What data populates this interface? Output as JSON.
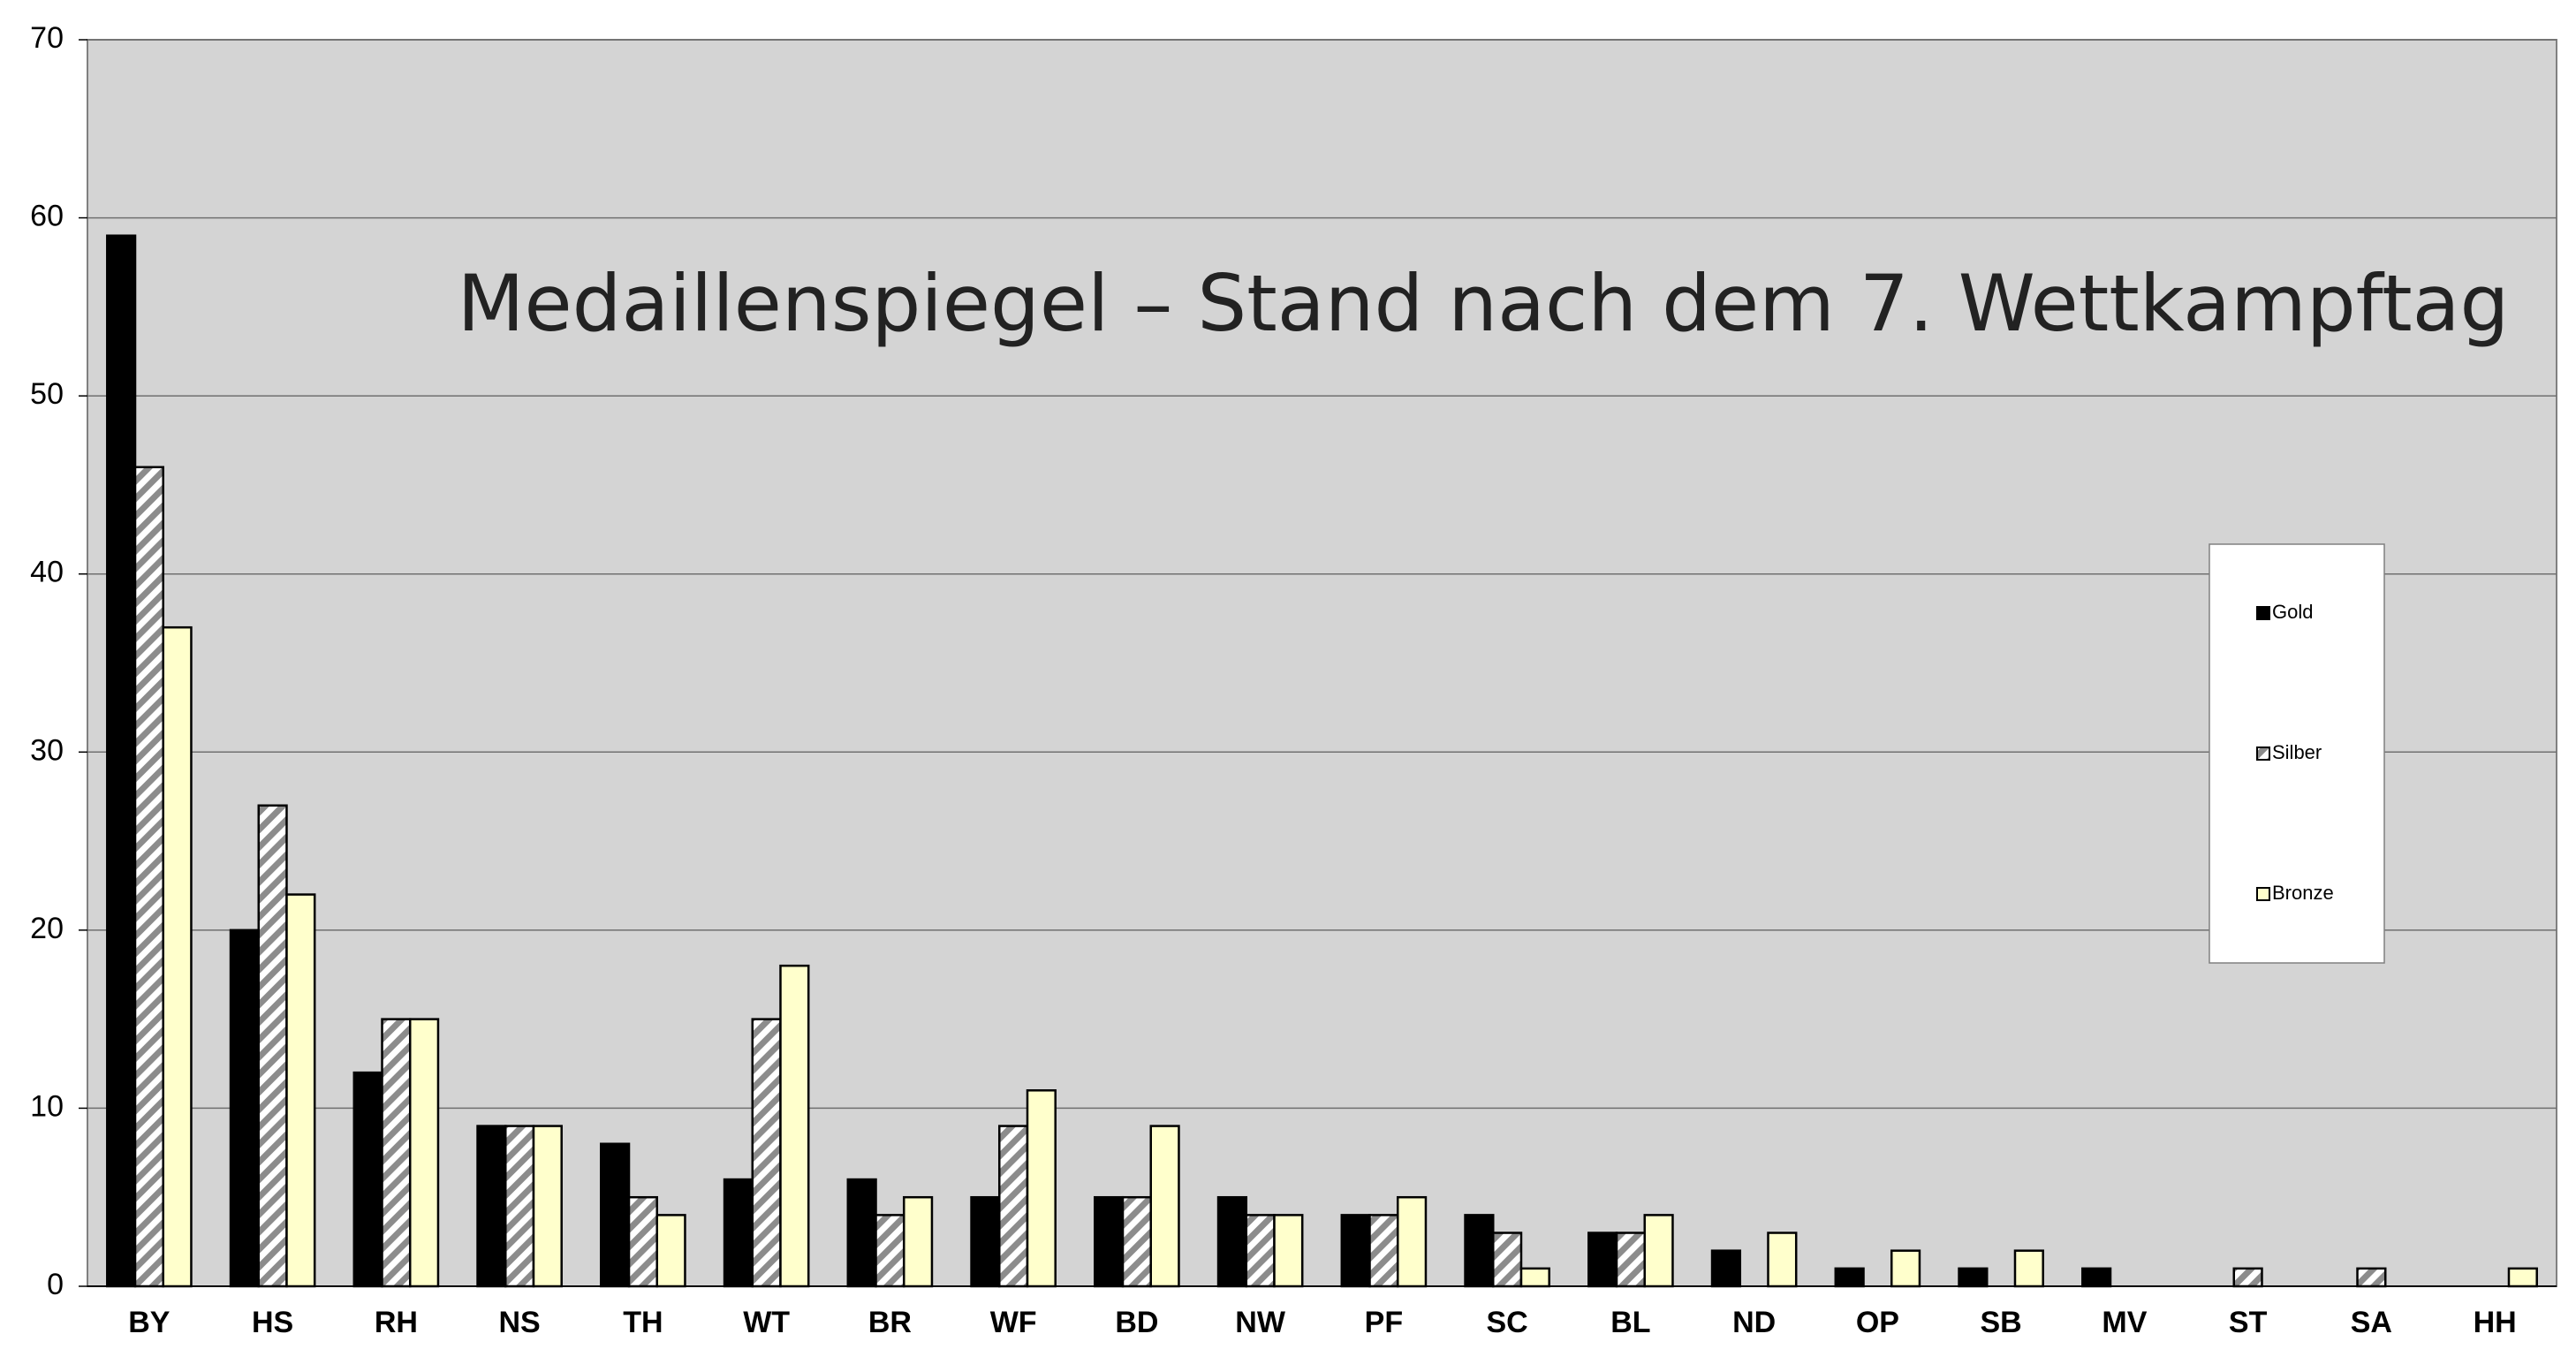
{
  "chart_data": {
    "type": "bar",
    "title": "Medaillenspiegel – Stand nach dem 7. Wettkampftag",
    "categories": [
      "BY",
      "HS",
      "RH",
      "NS",
      "TH",
      "WT",
      "BR",
      "WF",
      "BD",
      "NW",
      "PF",
      "SC",
      "BL",
      "ND",
      "OP",
      "SB",
      "MV",
      "ST",
      "SA",
      "HH"
    ],
    "series": [
      {
        "name": "Gold",
        "color": "#000000",
        "values": [
          59,
          20,
          12,
          9,
          8,
          6,
          6,
          5,
          5,
          5,
          4,
          4,
          3,
          2,
          1,
          1,
          1,
          0,
          0,
          0
        ]
      },
      {
        "name": "Silber",
        "color": "#8c8c8c",
        "hatch": true,
        "values": [
          46,
          27,
          15,
          9,
          5,
          15,
          4,
          9,
          5,
          4,
          4,
          3,
          3,
          0,
          0,
          0,
          0,
          1,
          1,
          0
        ]
      },
      {
        "name": "Bronze",
        "color": "#ffffcc",
        "values": [
          37,
          22,
          15,
          9,
          4,
          18,
          5,
          11,
          9,
          4,
          5,
          1,
          4,
          3,
          2,
          2,
          0,
          0,
          0,
          1
        ]
      }
    ],
    "ylim": [
      0,
      70
    ],
    "yticks": [
      0,
      10,
      20,
      30,
      40,
      50,
      60,
      70
    ],
    "grid": true,
    "legend": "right",
    "background": "#d4d4d4"
  }
}
